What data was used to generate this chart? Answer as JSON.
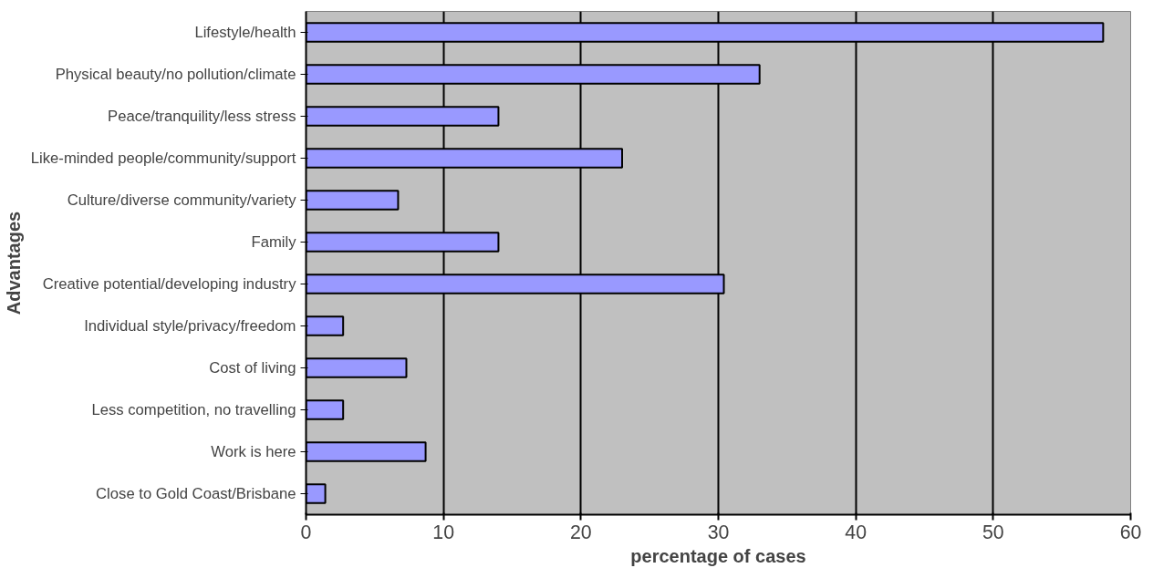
{
  "chart_data": {
    "type": "bar",
    "orientation": "horizontal",
    "xlabel": "percentage of cases",
    "ylabel": "Advantages",
    "categories": [
      "Lifestyle/health",
      "Physical beauty/no pollution/climate",
      "Peace/tranquility/less stress",
      "Like-minded people/community/support",
      "Culture/diverse community/variety",
      "Family",
      "Creative potential/developing industry",
      "Individual style/privacy/freedom",
      "Cost of living",
      "Less competition, no travelling",
      "Work is here",
      "Close to Gold Coast/Brisbane"
    ],
    "values": [
      58,
      33,
      14,
      23,
      6.7,
      14,
      30.4,
      2.7,
      7.3,
      2.7,
      8.7,
      1.4
    ],
    "color": "#9999ff",
    "xlim": [
      0,
      60
    ],
    "xticks": [
      0,
      10,
      20,
      30,
      40,
      50,
      60
    ],
    "grid": "x"
  }
}
